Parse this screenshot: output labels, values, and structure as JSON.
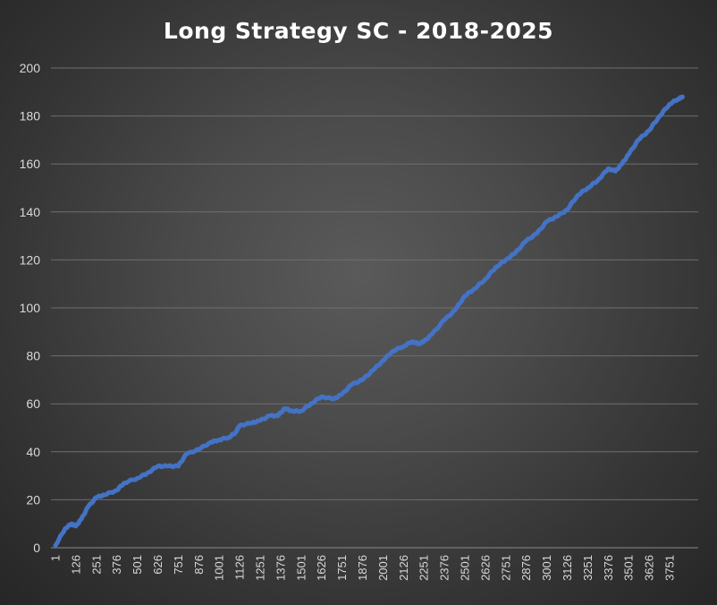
{
  "chart_data": {
    "type": "line",
    "title": "Long Strategy SC - 2018-2025",
    "xlabel": "",
    "ylabel": "",
    "ylim": [
      0,
      200
    ],
    "y_ticks": [
      0,
      20,
      40,
      60,
      80,
      100,
      120,
      140,
      160,
      180,
      200
    ],
    "x_tick_labels": [
      "1",
      "126",
      "251",
      "376",
      "501",
      "626",
      "751",
      "876",
      "1001",
      "1126",
      "1251",
      "1376",
      "1501",
      "1626",
      "1751",
      "1876",
      "2001",
      "2126",
      "2251",
      "2376",
      "2501",
      "2626",
      "2751",
      "2876",
      "3001",
      "3126",
      "3251",
      "3376",
      "3501",
      "3626",
      "3751"
    ],
    "xlim": [
      1,
      3830
    ],
    "grid": true,
    "legend": "none",
    "series": [
      {
        "color": "#4472c4",
        "x": [
          1,
          60,
          100,
          126,
          160,
          200,
          251,
          300,
          376,
          420,
          501,
          560,
          626,
          690,
          751,
          800,
          876,
          950,
          1001,
          1060,
          1100,
          1126,
          1200,
          1251,
          1310,
          1360,
          1400,
          1450,
          1501,
          1560,
          1626,
          1700,
          1751,
          1810,
          1876,
          1940,
          2001,
          2060,
          2126,
          2180,
          2220,
          2251,
          2300,
          2376,
          2440,
          2501,
          2560,
          2626,
          2690,
          2751,
          2810,
          2876,
          2940,
          3001,
          3060,
          3126,
          3190,
          3251,
          3310,
          3376,
          3420,
          3460,
          3501,
          3560,
          3626,
          3690,
          3751,
          3800,
          3830
        ],
        "y": [
          1,
          8,
          10,
          9,
          12,
          17,
          21,
          22,
          24,
          27,
          29,
          31,
          34,
          34,
          34,
          39,
          41,
          44,
          45,
          46,
          48,
          51,
          52,
          53,
          55,
          55,
          58,
          57,
          57,
          60,
          63,
          62,
          64,
          68,
          70,
          74,
          78,
          82,
          84,
          86,
          85,
          86,
          89,
          95,
          99,
          105,
          108,
          112,
          117,
          120,
          123,
          128,
          131,
          136,
          138,
          141,
          147,
          150,
          153,
          158,
          157,
          160,
          164,
          170,
          174,
          180,
          185,
          187,
          188
        ]
      }
    ]
  }
}
